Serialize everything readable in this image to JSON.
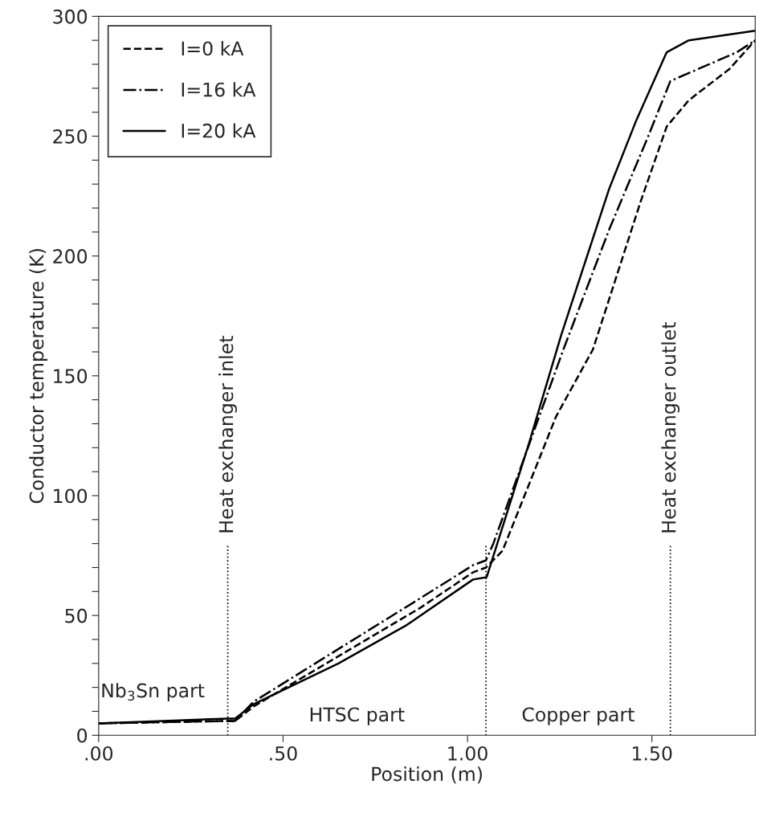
{
  "chart_data": {
    "type": "line",
    "xlabel": "Position (m)",
    "ylabel": "Conductor temperature (K)",
    "xlim": [
      0,
      1.78
    ],
    "ylim": [
      0,
      300
    ],
    "xticks": [
      {
        "value": 0,
        "label": ".00"
      },
      {
        "value": 0.5,
        "label": ".50"
      },
      {
        "value": 1.0,
        "label": "1.00"
      },
      {
        "value": 1.5,
        "label": "1.50"
      }
    ],
    "yticks": [
      0,
      {
        "value": 10,
        "label": null
      },
      {
        "value": 20,
        "label": null
      },
      {
        "value": 30,
        "label": null
      },
      {
        "value": 40,
        "label": null
      },
      50,
      {
        "value": 60,
        "label": null
      },
      {
        "value": 70,
        "label": null
      },
      {
        "value": 80,
        "label": null
      },
      {
        "value": 90,
        "label": null
      },
      100,
      {
        "value": 110,
        "label": null
      },
      {
        "value": 120,
        "label": null
      },
      {
        "value": 130,
        "label": null
      },
      {
        "value": 140,
        "label": null
      },
      150,
      {
        "value": 160,
        "label": null
      },
      {
        "value": 170,
        "label": null
      },
      {
        "value": 180,
        "label": null
      },
      {
        "value": 190,
        "label": null
      },
      200,
      {
        "value": 210,
        "label": null
      },
      {
        "value": 220,
        "label": null
      },
      {
        "value": 230,
        "label": null
      },
      {
        "value": 240,
        "label": null
      },
      250,
      {
        "value": 260,
        "label": null
      },
      {
        "value": 270,
        "label": null
      },
      {
        "value": 280,
        "label": null
      },
      {
        "value": 290,
        "label": null
      },
      300
    ],
    "grid": false,
    "legend": "top left",
    "marker": "none",
    "series": [
      {
        "name": "I=0 kA",
        "color": "#000000",
        "line_style": "dashed",
        "x": [
          0,
          0.35,
          0.37,
          0.42,
          0.65,
          0.87,
          1.015,
          1.05,
          1.095,
          1.24,
          1.34,
          1.47,
          1.54,
          1.6,
          1.71,
          1.78
        ],
        "values": [
          5,
          6,
          6,
          12,
          33,
          53,
          68,
          70,
          77,
          133,
          161,
          223,
          254,
          265,
          278,
          290
        ]
      },
      {
        "name": "I=16 kA",
        "color": "#000000",
        "line_style": "dashdot",
        "x": [
          0,
          0.35,
          0.37,
          0.42,
          0.65,
          0.87,
          1.015,
          1.05,
          1.07,
          1.26,
          1.384,
          1.49,
          1.55,
          1.73,
          1.78
        ],
        "values": [
          5,
          6,
          6,
          14,
          36,
          57,
          71,
          73,
          80,
          161,
          211,
          250,
          273,
          285,
          290
        ]
      },
      {
        "name": "I=20 kA",
        "color": "#000000",
        "line_style": "solid",
        "x": [
          0,
          0.35,
          0.37,
          0.42,
          0.65,
          0.835,
          1.015,
          1.052,
          1.167,
          1.254,
          1.384,
          1.456,
          1.54,
          1.6,
          1.78
        ],
        "values": [
          5,
          7,
          7,
          13,
          30,
          46,
          65,
          66,
          122,
          167,
          228,
          256,
          285,
          290,
          294
        ]
      }
    ],
    "ref_lines": [
      {
        "axis": "x",
        "value": 0.35,
        "label": "Heat exchanger inlet",
        "line_style": "dotted",
        "color": "#000000"
      },
      {
        "axis": "x",
        "value": 1.05,
        "label": null,
        "line_style": "dotted",
        "color": "#000000"
      },
      {
        "axis": "x",
        "value": 1.55,
        "label": "Heat exchanger outlet",
        "line_style": "dotted",
        "color": "#000000"
      }
    ],
    "annotations": [
      "Nb$_{3}$Sn part",
      "HTSC part",
      "Copper part"
    ]
  }
}
